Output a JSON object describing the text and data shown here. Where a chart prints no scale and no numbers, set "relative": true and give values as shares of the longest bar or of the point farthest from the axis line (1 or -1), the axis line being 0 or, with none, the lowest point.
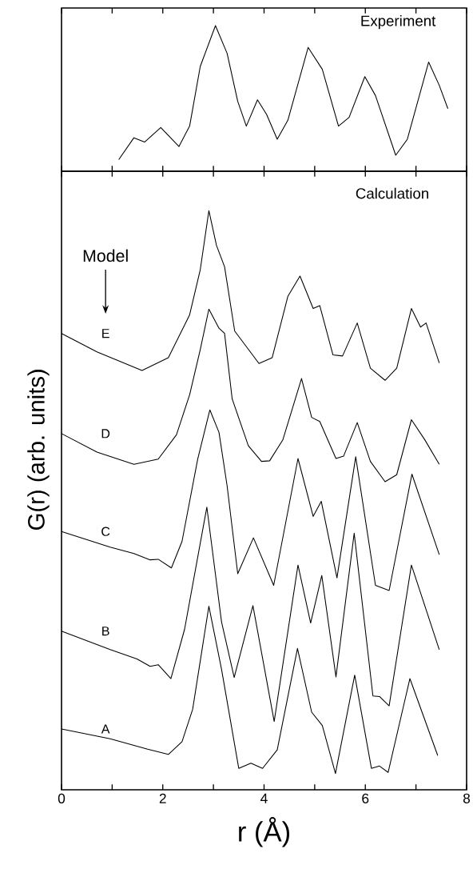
{
  "chart_data": [
    {
      "type": "line",
      "title": "Experiment",
      "relative": true,
      "xlim": [
        0,
        8
      ],
      "xticks": [
        0,
        {
          "value": 1,
          "label": null
        },
        2,
        {
          "value": 3,
          "label": null
        },
        4,
        {
          "value": 5,
          "label": null
        },
        6,
        {
          "value": 7,
          "label": null
        },
        8
      ],
      "tick_labels": false,
      "marker": "none",
      "line_style": "solid",
      "series": [
        {
          "color": "#000000",
          "x": [
            1.13,
            1.43,
            1.64,
            1.96,
            2.32,
            2.53,
            2.74,
            3.04,
            3.27,
            3.48,
            3.65,
            3.87,
            4.05,
            4.26,
            4.47,
            4.87,
            5.15,
            5.47,
            5.68,
            5.99,
            6.2,
            6.6,
            6.83,
            7.25,
            7.46,
            7.63
          ],
          "values": [
            0.08,
            0.23,
            0.2,
            0.3,
            0.17,
            0.31,
            0.72,
            1.0,
            0.81,
            0.48,
            0.31,
            0.49,
            0.39,
            0.22,
            0.35,
            0.85,
            0.7,
            0.31,
            0.37,
            0.65,
            0.52,
            0.11,
            0.22,
            0.75,
            0.59,
            0.43
          ]
        }
      ]
    },
    {
      "type": "line",
      "title": "Calculation",
      "xlabel": "r (Å)",
      "ylabel": "G(r) (arb. units)",
      "relative": true,
      "xlim": [
        0,
        8
      ],
      "xticks": [
        0,
        {
          "value": 1,
          "label": null
        },
        2,
        {
          "value": 3,
          "label": null
        },
        4,
        {
          "value": 5,
          "label": null
        },
        6,
        {
          "value": 7,
          "label": null
        },
        8
      ],
      "tick_labels": "x",
      "marker": "none",
      "line_style": "solid",
      "annotations": [
        "Model"
      ],
      "series": [
        {
          "name": "E",
          "color": "#000000",
          "x": [
            0,
            0.7,
            1.59,
            2.11,
            2.53,
            2.74,
            2.91,
            3.06,
            3.22,
            3.42,
            3.9,
            4.16,
            4.47,
            4.71,
            4.97,
            5.1,
            5.36,
            5.55,
            5.84,
            6.1,
            6.39,
            6.62,
            6.91,
            7.09,
            7.2,
            7.46
          ],
          "values": [
            0.788,
            0.756,
            0.724,
            0.746,
            0.82,
            0.898,
            1.0,
            0.94,
            0.903,
            0.792,
            0.736,
            0.746,
            0.852,
            0.887,
            0.831,
            0.836,
            0.751,
            0.749,
            0.806,
            0.728,
            0.707,
            0.728,
            0.831,
            0.799,
            0.806,
            0.737
          ]
        },
        {
          "name": "D",
          "color": "#000000",
          "x": [
            0,
            0.7,
            1.43,
            1.91,
            2.27,
            2.53,
            2.74,
            2.91,
            3.11,
            3.22,
            3.37,
            3.69,
            3.95,
            4.11,
            4.37,
            4.74,
            4.94,
            5.1,
            5.42,
            5.57,
            5.84,
            6.1,
            6.39,
            6.62,
            6.91,
            7.17,
            7.46
          ],
          "values": [
            0.615,
            0.583,
            0.562,
            0.571,
            0.613,
            0.682,
            0.76,
            0.83,
            0.797,
            0.788,
            0.675,
            0.594,
            0.567,
            0.568,
            0.604,
            0.71,
            0.643,
            0.636,
            0.572,
            0.576,
            0.634,
            0.567,
            0.532,
            0.544,
            0.639,
            0.605,
            0.562
          ]
        },
        {
          "name": "C",
          "color": "#000000",
          "x": [
            0,
            0.96,
            1.43,
            1.75,
            1.91,
            2.17,
            2.38,
            2.69,
            2.93,
            3.11,
            3.27,
            3.48,
            3.79,
            4.19,
            4.67,
            4.97,
            5.13,
            5.44,
            5.81,
            6.2,
            6.47,
            6.92,
            7.46
          ],
          "values": [
            0.446,
            0.419,
            0.408,
            0.397,
            0.398,
            0.383,
            0.429,
            0.571,
            0.656,
            0.617,
            0.525,
            0.373,
            0.435,
            0.353,
            0.572,
            0.472,
            0.498,
            0.366,
            0.575,
            0.353,
            0.344,
            0.545,
            0.406
          ]
        },
        {
          "name": "B",
          "color": "#000000",
          "x": [
            0,
            0.96,
            1.49,
            1.75,
            1.91,
            2.16,
            2.43,
            2.87,
            3.16,
            3.41,
            3.78,
            4.2,
            4.67,
            4.92,
            5.14,
            5.42,
            5.78,
            6.15,
            6.28,
            6.47,
            6.91,
            7.46
          ],
          "values": [
            0.274,
            0.242,
            0.226,
            0.213,
            0.216,
            0.192,
            0.277,
            0.488,
            0.29,
            0.194,
            0.318,
            0.118,
            0.388,
            0.288,
            0.37,
            0.195,
            0.443,
            0.162,
            0.161,
            0.145,
            0.388,
            0.242
          ]
        },
        {
          "name": "A",
          "color": "#000000",
          "x": [
            0,
            0.96,
            1.7,
            2.11,
            2.38,
            2.59,
            2.91,
            3.16,
            3.5,
            3.74,
            3.97,
            4.26,
            4.66,
            4.94,
            5.15,
            5.41,
            5.79,
            6.12,
            6.28,
            6.45,
            6.88,
            7.43
          ],
          "values": [
            0.105,
            0.088,
            0.07,
            0.061,
            0.083,
            0.139,
            0.317,
            0.208,
            0.037,
            0.046,
            0.037,
            0.069,
            0.244,
            0.134,
            0.111,
            0.028,
            0.198,
            0.037,
            0.041,
            0.03,
            0.192,
            0.059
          ]
        }
      ]
    }
  ]
}
